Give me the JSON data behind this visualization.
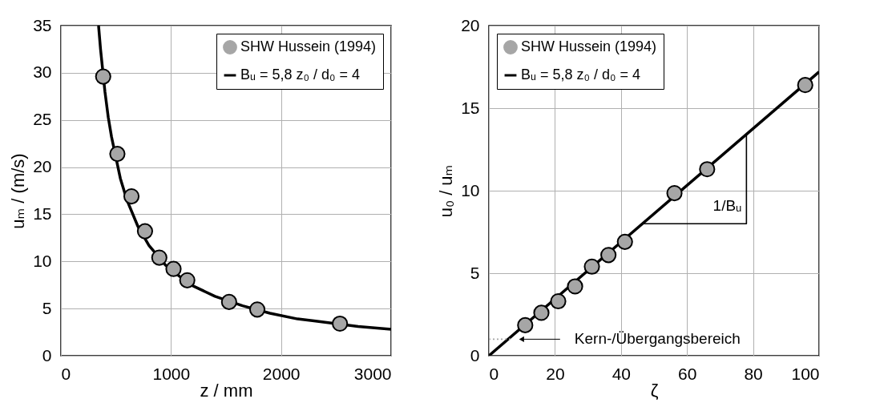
{
  "chart_data": [
    {
      "type": "scatter",
      "xlabel": "z  / mm",
      "ylabel": "uₘ / (m/s)",
      "xlim": [
        0,
        3000
      ],
      "xticks": [
        0,
        1000,
        2000,
        3000
      ],
      "ylim": [
        0,
        35
      ],
      "yticks": [
        0,
        5,
        10,
        15,
        20,
        25,
        30,
        35
      ],
      "grid": true,
      "legend": "top right",
      "series": [
        {
          "name": "SHW Hussein (1994)",
          "marker": "circle",
          "color": "#a6a6a6",
          "x": [
            384,
            513,
            641,
            764,
            894,
            1023,
            1148,
            1528,
            1784,
            2535
          ],
          "values": [
            29.6,
            21.4,
            16.9,
            13.2,
            10.4,
            9.2,
            8.0,
            5.7,
            4.9,
            3.4
          ]
        },
        {
          "name": "Bᵤ = 5,8  z₀ / d₀ = 4",
          "type": "line",
          "color": "#000000",
          "x": [
            342,
            360,
            400,
            430,
            460,
            540,
            600,
            700,
            800,
            950,
            1080,
            1200,
            1400,
            1650,
            1900,
            2150,
            2300,
            2700,
            3000
          ],
          "values": [
            35.0,
            32.5,
            28.0,
            25.3,
            23.2,
            18.8,
            16.5,
            13.7,
            11.7,
            9.6,
            8.4,
            7.4,
            6.3,
            5.3,
            4.5,
            3.9,
            3.7,
            3.1,
            2.8
          ]
        }
      ]
    },
    {
      "type": "scatter",
      "xlabel": "ζ",
      "ylabel": "u₀ / uₘ",
      "xlim": [
        0,
        100
      ],
      "xticks": [
        0,
        20,
        40,
        60,
        80,
        100
      ],
      "ylim": [
        0,
        20
      ],
      "yticks": [
        0,
        5,
        10,
        15,
        20
      ],
      "grid": true,
      "legend": "top left",
      "annotations": [
        "Kern-/Übergangsbereich",
        "1/Bᵤ"
      ],
      "series": [
        {
          "name": "SHW Hussein (1994)",
          "marker": "circle",
          "color": "#a6a6a6",
          "x": [
            11.0,
            15.9,
            21.0,
            26.1,
            31.2,
            36.2,
            41.2,
            56.2,
            66.1,
            95.8
          ],
          "values": [
            1.85,
            2.6,
            3.3,
            4.2,
            5.4,
            6.1,
            6.9,
            9.85,
            11.3,
            16.4
          ]
        },
        {
          "name": "Bᵤ = 5,8  z₀ / d₀ = 4",
          "type": "line",
          "color": "#000000",
          "x": [
            0,
            100
          ],
          "values": [
            0,
            17.2
          ]
        },
        {
          "type": "line",
          "color": "#a6a6a6",
          "line_style": "dotted",
          "x": [
            0,
            7
          ],
          "values": [
            1,
            1
          ]
        },
        {
          "type": "line",
          "color": "#000000",
          "x": [
            46.4,
            78,
            78
          ],
          "values": [
            8,
            8,
            13.4
          ]
        }
      ]
    }
  ]
}
